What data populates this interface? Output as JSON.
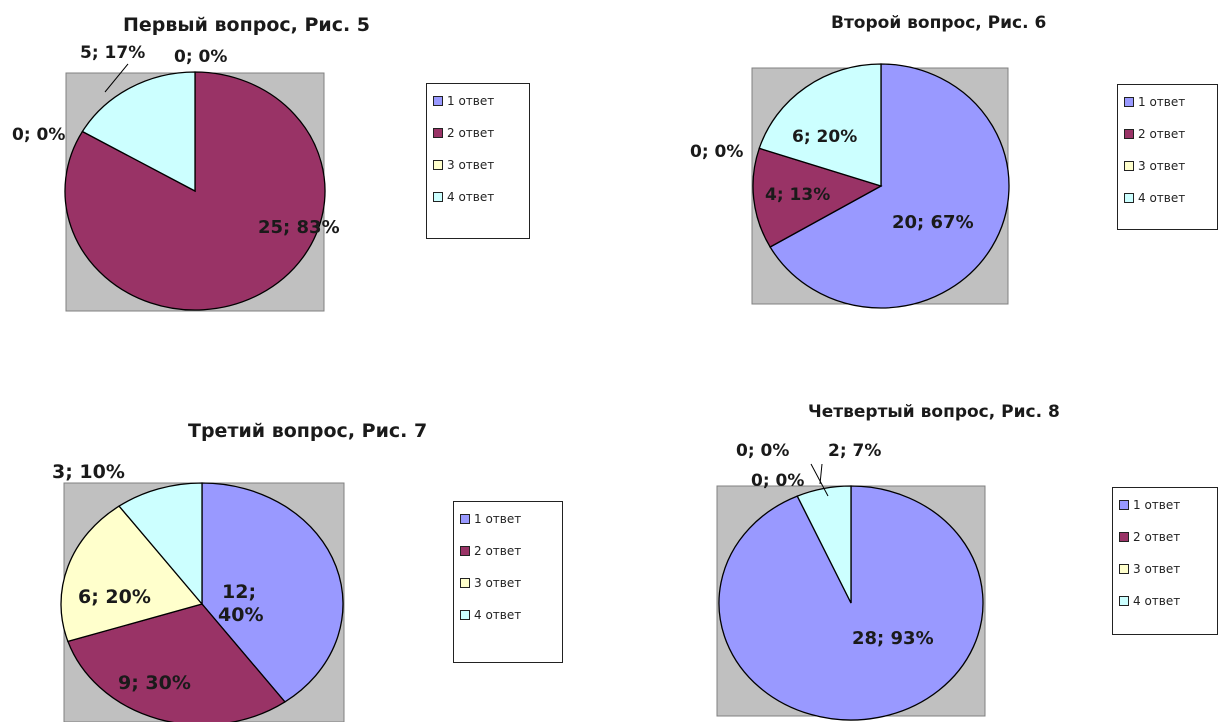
{
  "colors": {
    "answer1": "#9999ff",
    "answer2": "#993366",
    "answer3": "#ffffcc",
    "answer4": "#ccffff",
    "plot_area": "#c0c0c0"
  },
  "chart_data": [
    {
      "type": "pie",
      "title": "Первый вопрос, Рис. 5",
      "categories": [
        "1 ответ",
        "2 ответ",
        "3 ответ",
        "4 ответ"
      ],
      "values": [
        0,
        25,
        0,
        5
      ],
      "data_labels": [
        "0; 0%",
        "25; 83%",
        "0; 0%",
        "5; 17%"
      ],
      "legend": "right"
    },
    {
      "type": "pie",
      "title": "Второй вопрос, Рис. 6",
      "categories": [
        "1 ответ",
        "2 ответ",
        "3 ответ",
        "4 ответ"
      ],
      "values": [
        20,
        4,
        0,
        6
      ],
      "data_labels": [
        "20; 67%",
        "4; 13%",
        "0; 0%",
        "6; 20%"
      ],
      "legend": "right"
    },
    {
      "type": "pie",
      "title": "Третий вопрос, Рис. 7",
      "categories": [
        "1 ответ",
        "2 ответ",
        "3 ответ",
        "4 ответ"
      ],
      "values": [
        12,
        9,
        6,
        3
      ],
      "data_labels": [
        "12; 40%",
        "9; 30%",
        "6; 20%",
        "3; 10%"
      ],
      "legend": "right"
    },
    {
      "type": "pie",
      "title": "Четвертый вопрос, Рис. 8",
      "categories": [
        "1 ответ",
        "2 ответ",
        "3 ответ",
        "4 ответ"
      ],
      "values": [
        28,
        0,
        0,
        2
      ],
      "data_labels": [
        "28; 93%",
        "0; 0%",
        "0; 0%",
        "2; 7%"
      ],
      "legend": "right"
    }
  ]
}
